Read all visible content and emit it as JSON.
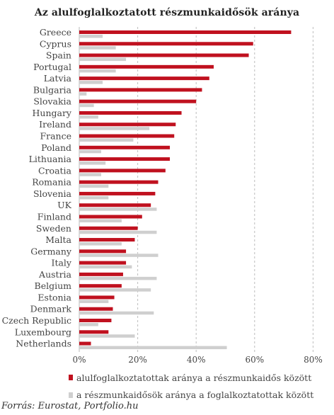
{
  "chart_data": {
    "type": "bar",
    "orientation": "horizontal",
    "title": "Az alulfoglalkoztatott részmunkaidősök aránya",
    "source": "Forrás: Eurostat, Portfolio.hu",
    "categories": [
      "Greece",
      "Cyprus",
      "Spain",
      "Portugal",
      "Latvia",
      "Bulgaria",
      "Slovakia",
      "Hungary",
      "Ireland",
      "France",
      "Poland",
      "Lithuania",
      "Croatia",
      "Romania",
      "Slovenia",
      "UK",
      "Finland",
      "Sweden",
      "Malta",
      "Germany",
      "Italy",
      "Austria",
      "Belgium",
      "Estonia",
      "Denmark",
      "Czech Republic",
      "Luxembourg",
      "Netherlands"
    ],
    "series": [
      {
        "name": "alulfoglalkoztatottak aránya a részmunkaidős között",
        "color": "#c0111f",
        "values": [
          72.5,
          59.5,
          58,
          46,
          44.5,
          42,
          40,
          35,
          33,
          32.5,
          31,
          31,
          29.5,
          27,
          26,
          24.5,
          21.5,
          20,
          19,
          16,
          16,
          15,
          14.5,
          12,
          11.5,
          11,
          10,
          4
        ]
      },
      {
        "name": "a részmunkaidősök aránya a foglalkoztatottak között",
        "color": "#cfcfcf",
        "values": [
          8,
          12.5,
          16,
          12.5,
          8,
          2.5,
          5,
          6.5,
          24,
          18.5,
          7.5,
          9,
          7.5,
          10,
          10,
          26.5,
          14.5,
          26.5,
          14.5,
          27,
          18,
          26.5,
          24.5,
          10,
          25.5,
          6.5,
          19,
          50.5
        ]
      }
    ],
    "xlim": [
      0,
      80
    ],
    "xticks": [
      "0%",
      "20%",
      "40%",
      "60%",
      "80%"
    ],
    "grid": "vertical dashed",
    "legend_position": "bottom"
  }
}
